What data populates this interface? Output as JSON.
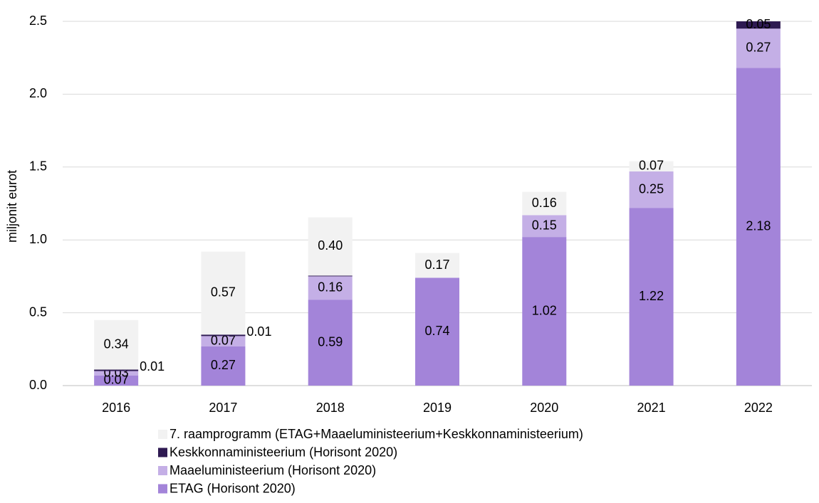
{
  "chart_data": {
    "type": "stacked_bar",
    "y_axis_label": "miljonit eurot",
    "categories": [
      "2016",
      "2017",
      "2018",
      "2019",
      "2020",
      "2021",
      "2022"
    ],
    "series": [
      {
        "name": "ETAG (Horisont 2020)",
        "color": "#a384d9",
        "values": [
          0.07,
          0.27,
          0.59,
          0.74,
          1.02,
          1.22,
          2.18
        ],
        "value_labels": [
          "0.07",
          "0.27",
          "0.59",
          "0.74",
          "1.02",
          "1.22",
          "2.18"
        ]
      },
      {
        "name": "Maaeluministeerium (Horisont 2020)",
        "color": "#c4afe6",
        "values": [
          0.03,
          0.07,
          0.16,
          null,
          0.15,
          0.25,
          0.27
        ],
        "value_labels": [
          "0.03",
          "0.07",
          "0.16",
          null,
          "0.15",
          "0.25",
          "0.27"
        ]
      },
      {
        "name": "Keskkonnaministeerium (Horisont 2020)",
        "color": "#2e1a52",
        "values": [
          0.01,
          0.01,
          0.005,
          null,
          null,
          null,
          0.05
        ],
        "value_labels": [
          "0.01",
          "0.01",
          null,
          null,
          null,
          null,
          "0.05"
        ]
      },
      {
        "name": "7. raamprogramm (ETAG+Maaeluministeerium+Keskkonnaministeerium)",
        "color": "#f2f2f2",
        "values": [
          0.34,
          0.57,
          0.4,
          0.17,
          0.16,
          0.07,
          null
        ],
        "value_labels": [
          "0.34",
          "0.57",
          "0.40",
          "0.17",
          "0.16",
          "0.07",
          null
        ]
      }
    ],
    "ylim": [
      0,
      2.5
    ],
    "yticks": [
      {
        "value": 0,
        "label": "0.0"
      },
      0.5,
      {
        "value": 1,
        "label": "1.0"
      },
      1.5,
      {
        "value": 2,
        "label": "2.0"
      },
      2.5
    ],
    "grid": true,
    "legend": "bottom"
  }
}
